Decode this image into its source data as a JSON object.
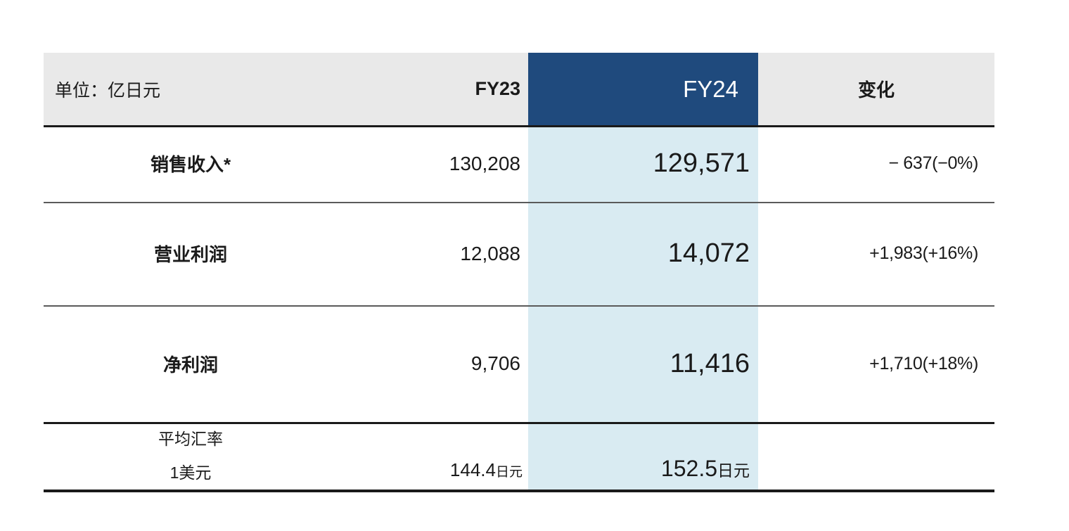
{
  "table": {
    "unit_label": "单位：亿日元",
    "header": {
      "fy23": "FY23",
      "fy24": "FY24",
      "change": "变化"
    },
    "rows": [
      {
        "label": "销售收入*",
        "fy23": "130,208",
        "fy24": "129,571",
        "change": "− 637(−0%)"
      },
      {
        "label": "营业利润",
        "fy23": "12,088",
        "fy24": "14,072",
        "change": "+1,983(+16%)"
      },
      {
        "label": "净利润",
        "fy23": "9,706",
        "fy24": "11,416",
        "change": "+1,710(+18%)"
      }
    ],
    "exchange": {
      "label_line1": "平均汇率",
      "label_line2": "1美元",
      "fy23_value": "144.4",
      "fy23_unit": "日元",
      "fy24_value": "152.5",
      "fy24_unit": "日元"
    },
    "colors": {
      "header_bg": "#E9E9E9",
      "fy24_header_bg": "#1F4A7D",
      "fy24_column_bg": "#D9EBF2",
      "divider_gray": "#5A5A5A",
      "line_black": "#1A1A1A",
      "text": "#1A1A1A"
    }
  },
  "chart_data": {
    "type": "table",
    "unit": "亿日元",
    "columns": [
      "",
      "FY23",
      "FY24",
      "变化"
    ],
    "rows": [
      [
        "销售收入*",
        "130,208",
        "129,571",
        "− 637(−0%)"
      ],
      [
        "营业利润",
        "12,088",
        "14,072",
        "+1,983(+16%)"
      ],
      [
        "净利润",
        "9,706",
        "11,416",
        "+1,710(+18%)"
      ],
      [
        "平均汇率 1美元",
        "144.4日元",
        "152.5日元",
        ""
      ]
    ],
    "numeric": {
      "sales_revenue": {
        "fy23": 130208,
        "fy24": 129571,
        "change": -637,
        "change_pct": "-0%"
      },
      "operating_profit": {
        "fy23": 12088,
        "fy24": 14072,
        "change": 1983,
        "change_pct": "+16%"
      },
      "net_profit": {
        "fy23": 9706,
        "fy24": 11416,
        "change": 1710,
        "change_pct": "+18%"
      },
      "average_exchange_rate_usd_jpy": {
        "fy23": 144.4,
        "fy24": 152.5,
        "unit": "日元"
      }
    },
    "highlighted_column": "FY24"
  }
}
